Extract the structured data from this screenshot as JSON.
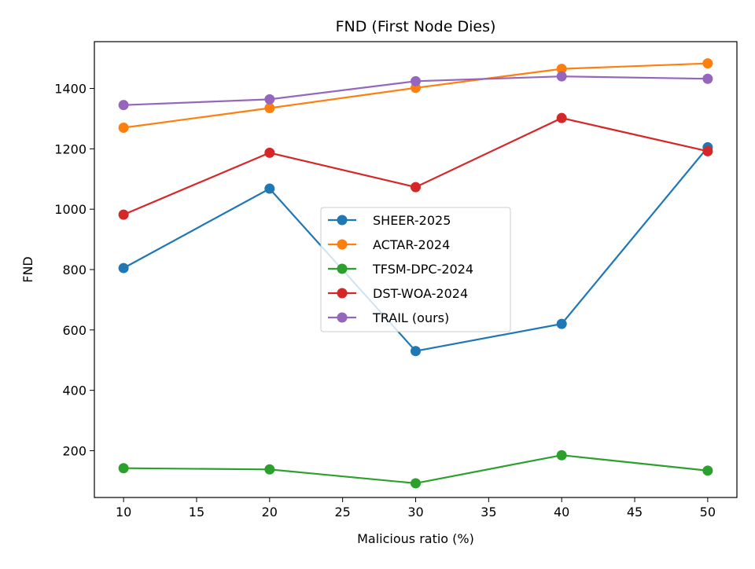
{
  "chart_data": {
    "type": "line",
    "title": "FND (First Node Dies)",
    "xlabel": "Malicious ratio (%)",
    "ylabel": "FND",
    "x": [
      10,
      20,
      30,
      40,
      50
    ],
    "xlim": [
      8,
      52
    ],
    "ylim": [
      45,
      1555
    ],
    "xticks": [
      10,
      15,
      20,
      25,
      30,
      35,
      40,
      45,
      50
    ],
    "yticks": [
      200,
      400,
      600,
      800,
      1000,
      1200,
      1400
    ],
    "grid": false,
    "legend_position": "center",
    "series": [
      {
        "name": "SHEER-2025",
        "color": "#1f77b4",
        "values": [
          805,
          1068,
          530,
          620,
          1205
        ]
      },
      {
        "name": "ACTAR-2024",
        "color": "#ff7f0e",
        "values": [
          1270,
          1335,
          1402,
          1465,
          1483
        ]
      },
      {
        "name": "TFSM-DPC-2024",
        "color": "#2ca02c",
        "values": [
          142,
          138,
          92,
          185,
          134
        ]
      },
      {
        "name": "DST-WOA-2024",
        "color": "#d62728",
        "values": [
          982,
          1187,
          1073,
          1302,
          1192
        ]
      },
      {
        "name": "TRAIL (ours)",
        "color": "#9467bd",
        "values": [
          1345,
          1364,
          1424,
          1440,
          1432
        ]
      }
    ]
  }
}
